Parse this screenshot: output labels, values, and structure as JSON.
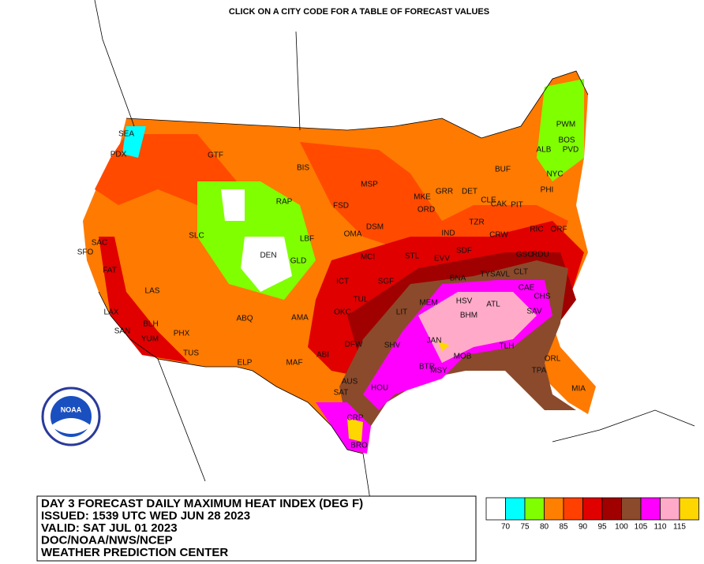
{
  "header": {
    "title": "CLICK ON A CITY CODE FOR A TABLE OF FORECAST VALUES"
  },
  "logo_text": "NOAA",
  "info_box": {
    "lines": [
      "DAY 3 FORECAST DAILY MAXIMUM HEAT INDEX (DEG F)",
      "ISSUED: 1539 UTC WED JUN 28 2023",
      "VALID: SAT JUL 01 2023",
      "DOC/NOAA/NWS/NCEP",
      "WEATHER PREDICTION CENTER"
    ]
  },
  "legend": {
    "colors": [
      "#ffffff",
      "#00ffff",
      "#80ff00",
      "#ff8000",
      "#ff4000",
      "#e00000",
      "#a00000",
      "#8b4a2b",
      "#ff00ff",
      "#ffaac8",
      "#ffd700"
    ],
    "labels": [
      70,
      75,
      80,
      85,
      90,
      95,
      100,
      105,
      110,
      115
    ]
  },
  "cities": [
    "SEA",
    "PDX",
    "GTF",
    "BIS",
    "MSP",
    "GRR",
    "DET",
    "BUF",
    "ALB",
    "PWM",
    "BOS",
    "PVD",
    "NYC",
    "PHI",
    "RAP",
    "FSD",
    "DSM",
    "MKE",
    "ORD",
    "CLE",
    "CAK",
    "PIT",
    "TZR",
    "SLC",
    "OMA",
    "LBF",
    "IND",
    "SAC",
    "SFO",
    "DEN",
    "GLD",
    "MCI",
    "STL",
    "EVV",
    "SDF",
    "CRW",
    "RIC",
    "ORF",
    "FAT",
    "ICT",
    "SGF",
    "BNA",
    "TYS",
    "AVL",
    "CLT",
    "RDU",
    "GSO",
    "LAS",
    "TUL",
    "MEM",
    "HSV",
    "ATL",
    "CAE",
    "CHS",
    "SAV",
    "LAX",
    "ABQ",
    "AMA",
    "OKC",
    "LIT",
    "BHM",
    "BLH",
    "SAN",
    "YUM",
    "PHX",
    "JAN",
    "DFW",
    "SHV",
    "TLH",
    "TUS",
    "ELP",
    "MAF",
    "ABI",
    "BTR",
    "MSY",
    "MOB",
    "ORL",
    "TPA",
    "MIA",
    "AUS",
    "SAT",
    "HOU",
    "CRP",
    "BRO"
  ]
}
